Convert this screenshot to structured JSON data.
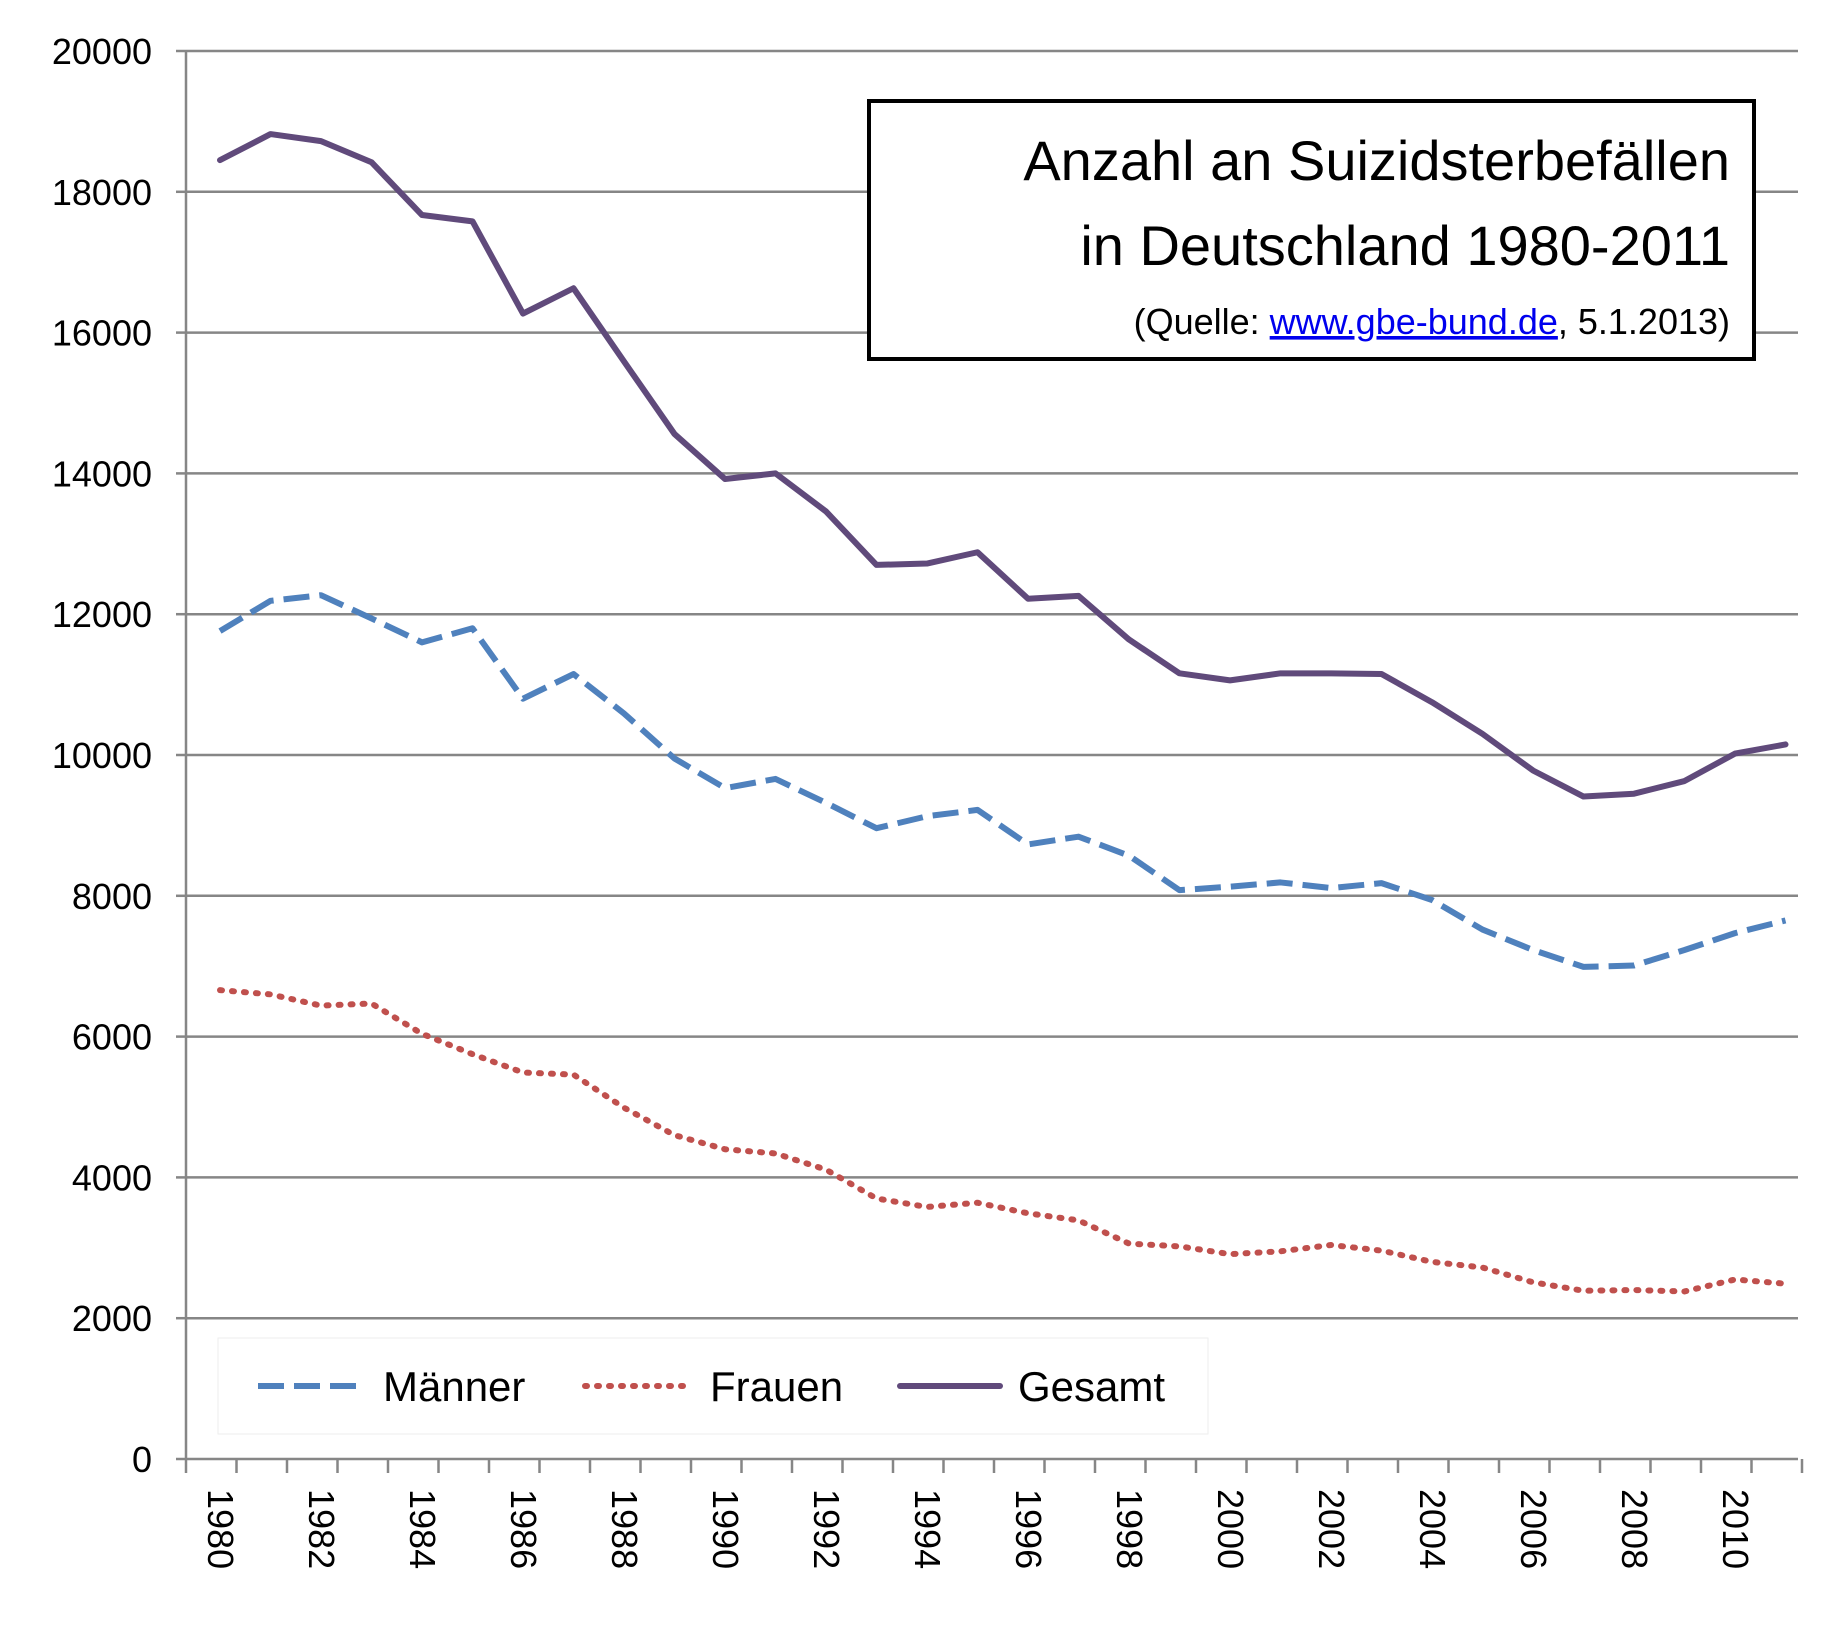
{
  "chart_data": {
    "type": "line",
    "title_lines": [
      "Anzahl an Suizidsterbefällen",
      "in Deutschland 1980-2011"
    ],
    "source": {
      "prefix": "(Quelle: ",
      "link": "www.gbe-bund.de",
      "suffix": ", 5.1.2013)"
    },
    "x": [
      1980,
      1981,
      1982,
      1983,
      1984,
      1985,
      1986,
      1987,
      1988,
      1989,
      1990,
      1991,
      1992,
      1993,
      1994,
      1995,
      1996,
      1997,
      1998,
      1999,
      2000,
      2001,
      2002,
      2003,
      2004,
      2005,
      2006,
      2007,
      2008,
      2009,
      2010,
      2011
    ],
    "x_tick_labels": [
      "1980",
      "1982",
      "1984",
      "1986",
      "1988",
      "1990",
      "1992",
      "1994",
      "1996",
      "1998",
      "2000",
      "2002",
      "2004",
      "2006",
      "2008",
      "2010"
    ],
    "y_ticks": [
      0,
      2000,
      4000,
      6000,
      8000,
      10000,
      12000,
      14000,
      16000,
      18000,
      20000
    ],
    "y_tick_labels": [
      "0",
      "2000",
      "4000",
      "6000",
      "8000",
      "10000",
      "12000",
      "14000",
      "16000",
      "18000",
      "20000"
    ],
    "ylim": [
      0,
      20000
    ],
    "grid": true,
    "legend_position": "bottom-left",
    "series": [
      {
        "name": "Männer",
        "color": "#4f81bd",
        "style": "dashed",
        "values": [
          11760,
          12190,
          12270,
          11940,
          11600,
          11800,
          10800,
          11150,
          10590,
          9950,
          9530,
          9660,
          9320,
          8960,
          9130,
          9220,
          8730,
          8840,
          8570,
          8080,
          8130,
          8190,
          8110,
          8180,
          7940,
          7520,
          7230,
          6990,
          7010,
          7230,
          7470,
          7650
        ]
      },
      {
        "name": "Frauen",
        "color": "#c0504d",
        "style": "dotted",
        "values": [
          6660,
          6600,
          6440,
          6470,
          6040,
          5750,
          5490,
          5460,
          4990,
          4600,
          4400,
          4340,
          4110,
          3700,
          3580,
          3640,
          3490,
          3390,
          3060,
          3020,
          2910,
          2950,
          3040,
          2960,
          2800,
          2720,
          2510,
          2390,
          2400,
          2380,
          2550,
          2490
        ]
      },
      {
        "name": "Gesamt",
        "color": "#604a7b",
        "style": "solid",
        "values": [
          18450,
          18820,
          18720,
          18420,
          17670,
          17580,
          16270,
          16630,
          15590,
          14560,
          13920,
          14000,
          13460,
          12700,
          12720,
          12880,
          12220,
          12260,
          11640,
          11160,
          11060,
          11160,
          11160,
          11150,
          10750,
          10300,
          9780,
          9410,
          9450,
          9630,
          10020,
          10150
        ]
      }
    ]
  }
}
